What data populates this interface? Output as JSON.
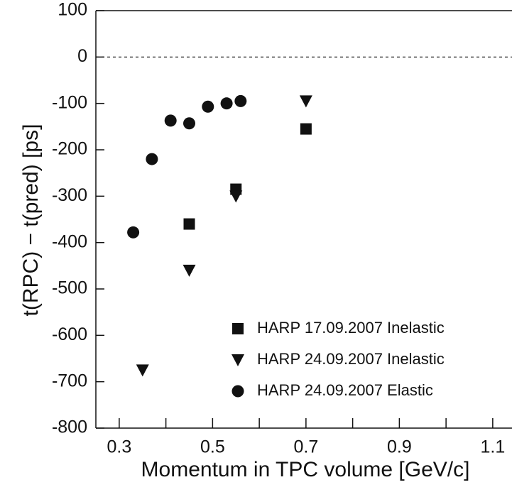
{
  "chart_data": {
    "type": "scatter",
    "xlabel": "Momentum in TPC volume [GeV/c]",
    "ylabel": "t(RPC) − t(pred) [ps]",
    "xlim": [
      0.25,
      1.15
    ],
    "ylim": [
      -800,
      100
    ],
    "xticks": [
      0.3,
      0.5,
      0.7,
      0.9,
      1.1
    ],
    "xminorticks": [
      0.4,
      0.6,
      0.8,
      1.0
    ],
    "yticks": [
      -800,
      -700,
      -600,
      -500,
      -400,
      -300,
      -200,
      -100,
      0,
      100
    ],
    "reference_line": 0,
    "legend": "lower right",
    "series": [
      {
        "name": "HARP 17.09.2007 Inelastic",
        "color": "#111111",
        "marker": "square",
        "x": [
          0.45,
          0.55,
          0.7
        ],
        "values": [
          -360,
          -285,
          -155
        ]
      },
      {
        "name": "HARP 24.09.2007 Inelastic",
        "color": "#111111",
        "marker": "triangle-down",
        "x": [
          0.35,
          0.45,
          0.55,
          0.7
        ],
        "values": [
          -675,
          -460,
          -300,
          -95
        ]
      },
      {
        "name": "HARP 24.09.2007 Elastic",
        "color": "#111111",
        "marker": "circle",
        "x": [
          0.33,
          0.37,
          0.41,
          0.45,
          0.49,
          0.53,
          0.56
        ],
        "values": [
          -378,
          -220,
          -137,
          -143,
          -107,
          -100,
          -95
        ]
      }
    ]
  }
}
